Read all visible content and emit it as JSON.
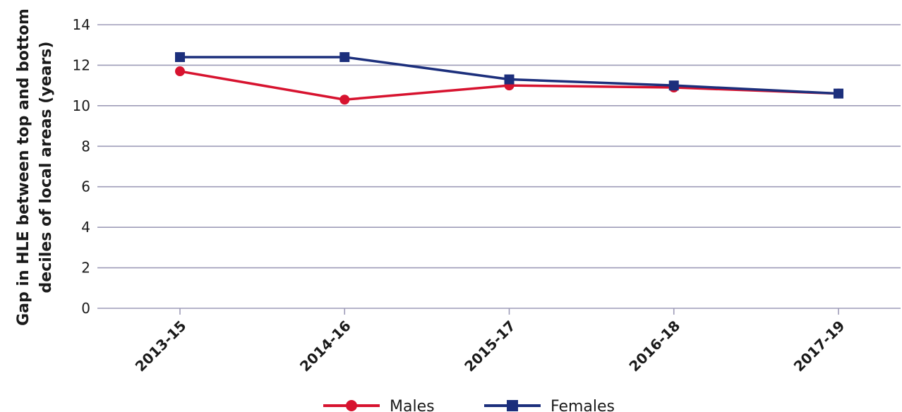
{
  "chart_data": {
    "type": "line",
    "categories": [
      "2013-15",
      "2014-16",
      "2015-17",
      "2016-18",
      "2017-19"
    ],
    "series": [
      {
        "name": "Males",
        "color": "#d7132f",
        "marker": "circle",
        "values": [
          11.7,
          10.3,
          11.0,
          10.9,
          10.6
        ]
      },
      {
        "name": "Females",
        "color": "#1c2f7c",
        "marker": "square",
        "values": [
          12.4,
          12.4,
          11.3,
          11.0,
          10.6
        ]
      }
    ],
    "title": "",
    "xlabel": "",
    "ylabel_lines": [
      "Gap in HLE between top and bottom",
      "deciles of local areas (years)"
    ],
    "yticks": [
      0,
      2,
      4,
      6,
      8,
      10,
      12,
      14
    ],
    "ylim": [
      0,
      14
    ],
    "grid": true,
    "grid_color": "#9e9cb8",
    "legend_position": "bottom-center"
  }
}
